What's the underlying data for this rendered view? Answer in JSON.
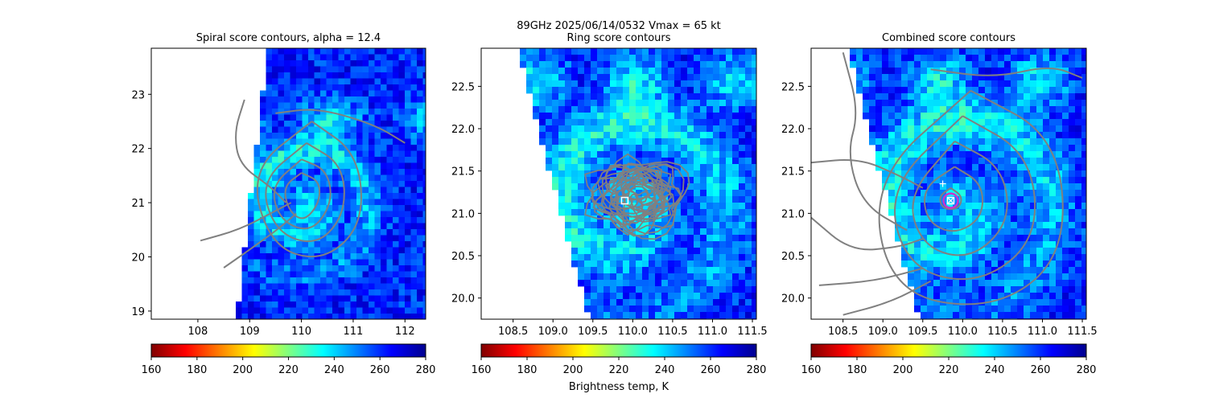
{
  "figure": {
    "suptitle_line": "89GHz  2025/06/14/0532    Vmax = 65 kt",
    "colorbar_label": "Brightness temp, K"
  },
  "colormap": {
    "name": "jet_r",
    "vmin": 160,
    "vmax": 280,
    "stops": [
      "#7f0000",
      "#ff0000",
      "#ff8000",
      "#ffff00",
      "#80ff80",
      "#00ffff",
      "#0080ff",
      "#0000ff",
      "#00008f"
    ]
  },
  "colors": {
    "contour": "#808080",
    "no_data": "#ffffff",
    "marker_square": "#ffffff",
    "marker_ring": "#cc33cc"
  },
  "chart_data": [
    {
      "type": "heatmap",
      "title": "Spiral score contours, alpha = 12.4",
      "xlim": [
        107.1,
        112.4
      ],
      "ylim": [
        18.85,
        23.85
      ],
      "xticks": [
        "108",
        "109",
        "110",
        "111",
        "112"
      ],
      "xtick_values": [
        108,
        109,
        110,
        111,
        112
      ],
      "yticks": [
        "19",
        "20",
        "21",
        "22",
        "23"
      ],
      "ytick_values": [
        19,
        20,
        21,
        22,
        23
      ],
      "colorbar_ticks": [
        "160",
        "180",
        "200",
        "220",
        "240",
        "260",
        "280"
      ],
      "swath_edge": [
        [
          109.35,
          23.85
        ],
        [
          108.75,
          18.85
        ]
      ],
      "center": [
        110.0,
        21.05
      ],
      "contour_levels_lonlat": [
        [
          [
            110.0,
            21.55
          ],
          [
            110.35,
            21.4
          ],
          [
            110.35,
            21.0
          ],
          [
            110.05,
            20.65
          ],
          [
            109.75,
            20.85
          ],
          [
            109.65,
            21.3
          ],
          [
            110.0,
            21.55
          ]
        ],
        [
          [
            110.0,
            21.8
          ],
          [
            110.5,
            21.6
          ],
          [
            110.6,
            21.0
          ],
          [
            110.2,
            20.45
          ],
          [
            109.6,
            20.65
          ],
          [
            109.4,
            21.3
          ],
          [
            110.0,
            21.8
          ]
        ],
        [
          [
            110.1,
            22.1
          ],
          [
            110.8,
            21.7
          ],
          [
            110.85,
            20.8
          ],
          [
            110.3,
            20.2
          ],
          [
            109.5,
            20.45
          ],
          [
            109.2,
            21.4
          ],
          [
            110.1,
            22.1
          ]
        ],
        [
          [
            110.2,
            22.5
          ],
          [
            111.1,
            21.9
          ],
          [
            111.2,
            20.6
          ],
          [
            110.4,
            19.9
          ],
          [
            109.4,
            20.2
          ],
          [
            109.0,
            21.6
          ],
          [
            110.2,
            22.5
          ]
        ],
        [
          [
            109.5,
            22.65
          ],
          [
            110.3,
            22.75
          ],
          [
            111.4,
            22.45
          ],
          [
            112.0,
            22.1
          ]
        ],
        [
          [
            108.9,
            22.9
          ],
          [
            108.7,
            22.3
          ],
          [
            108.8,
            21.7
          ],
          [
            109.4,
            21.3
          ],
          [
            109.7,
            21.0
          ]
        ],
        [
          [
            108.05,
            20.3
          ],
          [
            108.8,
            20.5
          ],
          [
            109.5,
            20.85
          ],
          [
            109.8,
            21.0
          ]
        ],
        [
          [
            108.5,
            19.8
          ],
          [
            109.1,
            20.2
          ],
          [
            109.6,
            20.55
          ],
          [
            109.9,
            20.8
          ]
        ]
      ]
    },
    {
      "type": "heatmap",
      "title": "Ring score contours",
      "xlim": [
        108.1,
        111.55
      ],
      "ylim": [
        19.75,
        22.95
      ],
      "xticks": [
        "108.5",
        "109.0",
        "109.5",
        "110.0",
        "110.5",
        "111.0",
        "111.5"
      ],
      "xtick_values": [
        108.5,
        109.0,
        109.5,
        110.0,
        110.5,
        111.0,
        111.5
      ],
      "yticks": [
        "20.0",
        "20.5",
        "21.0",
        "21.5",
        "22.0",
        "22.5"
      ],
      "ytick_values": [
        20.0,
        20.5,
        21.0,
        21.5,
        22.0,
        22.5
      ],
      "colorbar_ticks": [
        "160",
        "180",
        "200",
        "220",
        "240",
        "260",
        "280"
      ],
      "swath_edge": [
        [
          108.55,
          22.95
        ],
        [
          109.45,
          19.75
        ]
      ],
      "center": [
        109.9,
        21.15
      ],
      "contour_blob_center": [
        110.05,
        21.2
      ],
      "contour_blob_radius": [
        0.55,
        0.45
      ]
    },
    {
      "type": "heatmap",
      "title": "Combined score contours",
      "xlim": [
        108.1,
        111.55
      ],
      "ylim": [
        19.75,
        22.95
      ],
      "xticks": [
        "108.5",
        "109.0",
        "109.5",
        "110.0",
        "110.5",
        "111.0",
        "111.5"
      ],
      "xtick_values": [
        108.5,
        109.0,
        109.5,
        110.0,
        110.5,
        111.0,
        111.5
      ],
      "yticks": [
        "20.0",
        "20.5",
        "21.0",
        "21.5",
        "22.0",
        "22.5"
      ],
      "ytick_values": [
        20.0,
        20.5,
        21.0,
        21.5,
        22.0,
        22.5
      ],
      "colorbar_ticks": [
        "160",
        "180",
        "200",
        "220",
        "240",
        "260",
        "280"
      ],
      "swath_edge": [
        [
          108.55,
          22.95
        ],
        [
          109.45,
          19.75
        ]
      ],
      "center": [
        109.85,
        21.15
      ],
      "first_guess": [
        109.75,
        21.35
      ],
      "contour_levels_lonlat": [
        [
          [
            109.85,
            21.3
          ],
          [
            110.0,
            21.2
          ],
          [
            109.95,
            21.05
          ],
          [
            109.75,
            21.05
          ],
          [
            109.7,
            21.2
          ],
          [
            109.85,
            21.3
          ]
        ],
        [
          [
            109.9,
            21.55
          ],
          [
            110.25,
            21.35
          ],
          [
            110.25,
            20.95
          ],
          [
            109.9,
            20.75
          ],
          [
            109.55,
            20.9
          ],
          [
            109.5,
            21.3
          ],
          [
            109.9,
            21.55
          ]
        ],
        [
          [
            109.9,
            21.85
          ],
          [
            110.5,
            21.55
          ],
          [
            110.6,
            20.9
          ],
          [
            110.1,
            20.45
          ],
          [
            109.5,
            20.6
          ],
          [
            109.3,
            21.2
          ],
          [
            109.9,
            21.85
          ]
        ],
        [
          [
            110.0,
            22.15
          ],
          [
            110.85,
            21.7
          ],
          [
            110.95,
            20.7
          ],
          [
            110.2,
            20.15
          ],
          [
            109.3,
            20.35
          ],
          [
            109.05,
            21.3
          ],
          [
            110.0,
            22.15
          ]
        ],
        [
          [
            110.1,
            22.45
          ],
          [
            111.2,
            21.9
          ],
          [
            111.3,
            20.5
          ],
          [
            110.4,
            19.85
          ],
          [
            109.1,
            20.05
          ],
          [
            108.85,
            21.4
          ],
          [
            110.1,
            22.45
          ]
        ],
        [
          [
            109.6,
            22.7
          ],
          [
            110.4,
            22.6
          ],
          [
            111.1,
            22.75
          ],
          [
            111.5,
            22.6
          ]
        ],
        [
          [
            108.5,
            22.9
          ],
          [
            108.7,
            22.2
          ],
          [
            108.55,
            21.7
          ],
          [
            108.75,
            21.1
          ],
          [
            109.3,
            20.8
          ]
        ],
        [
          [
            108.1,
            21.6
          ],
          [
            108.7,
            21.65
          ],
          [
            109.2,
            21.45
          ],
          [
            109.5,
            21.3
          ]
        ],
        [
          [
            108.1,
            20.95
          ],
          [
            108.6,
            20.55
          ],
          [
            109.2,
            20.6
          ],
          [
            109.5,
            20.7
          ]
        ],
        [
          [
            108.2,
            20.15
          ],
          [
            108.9,
            20.2
          ],
          [
            109.5,
            20.35
          ]
        ],
        [
          [
            108.5,
            19.8
          ],
          [
            109.1,
            19.95
          ],
          [
            109.6,
            20.2
          ]
        ]
      ]
    }
  ]
}
